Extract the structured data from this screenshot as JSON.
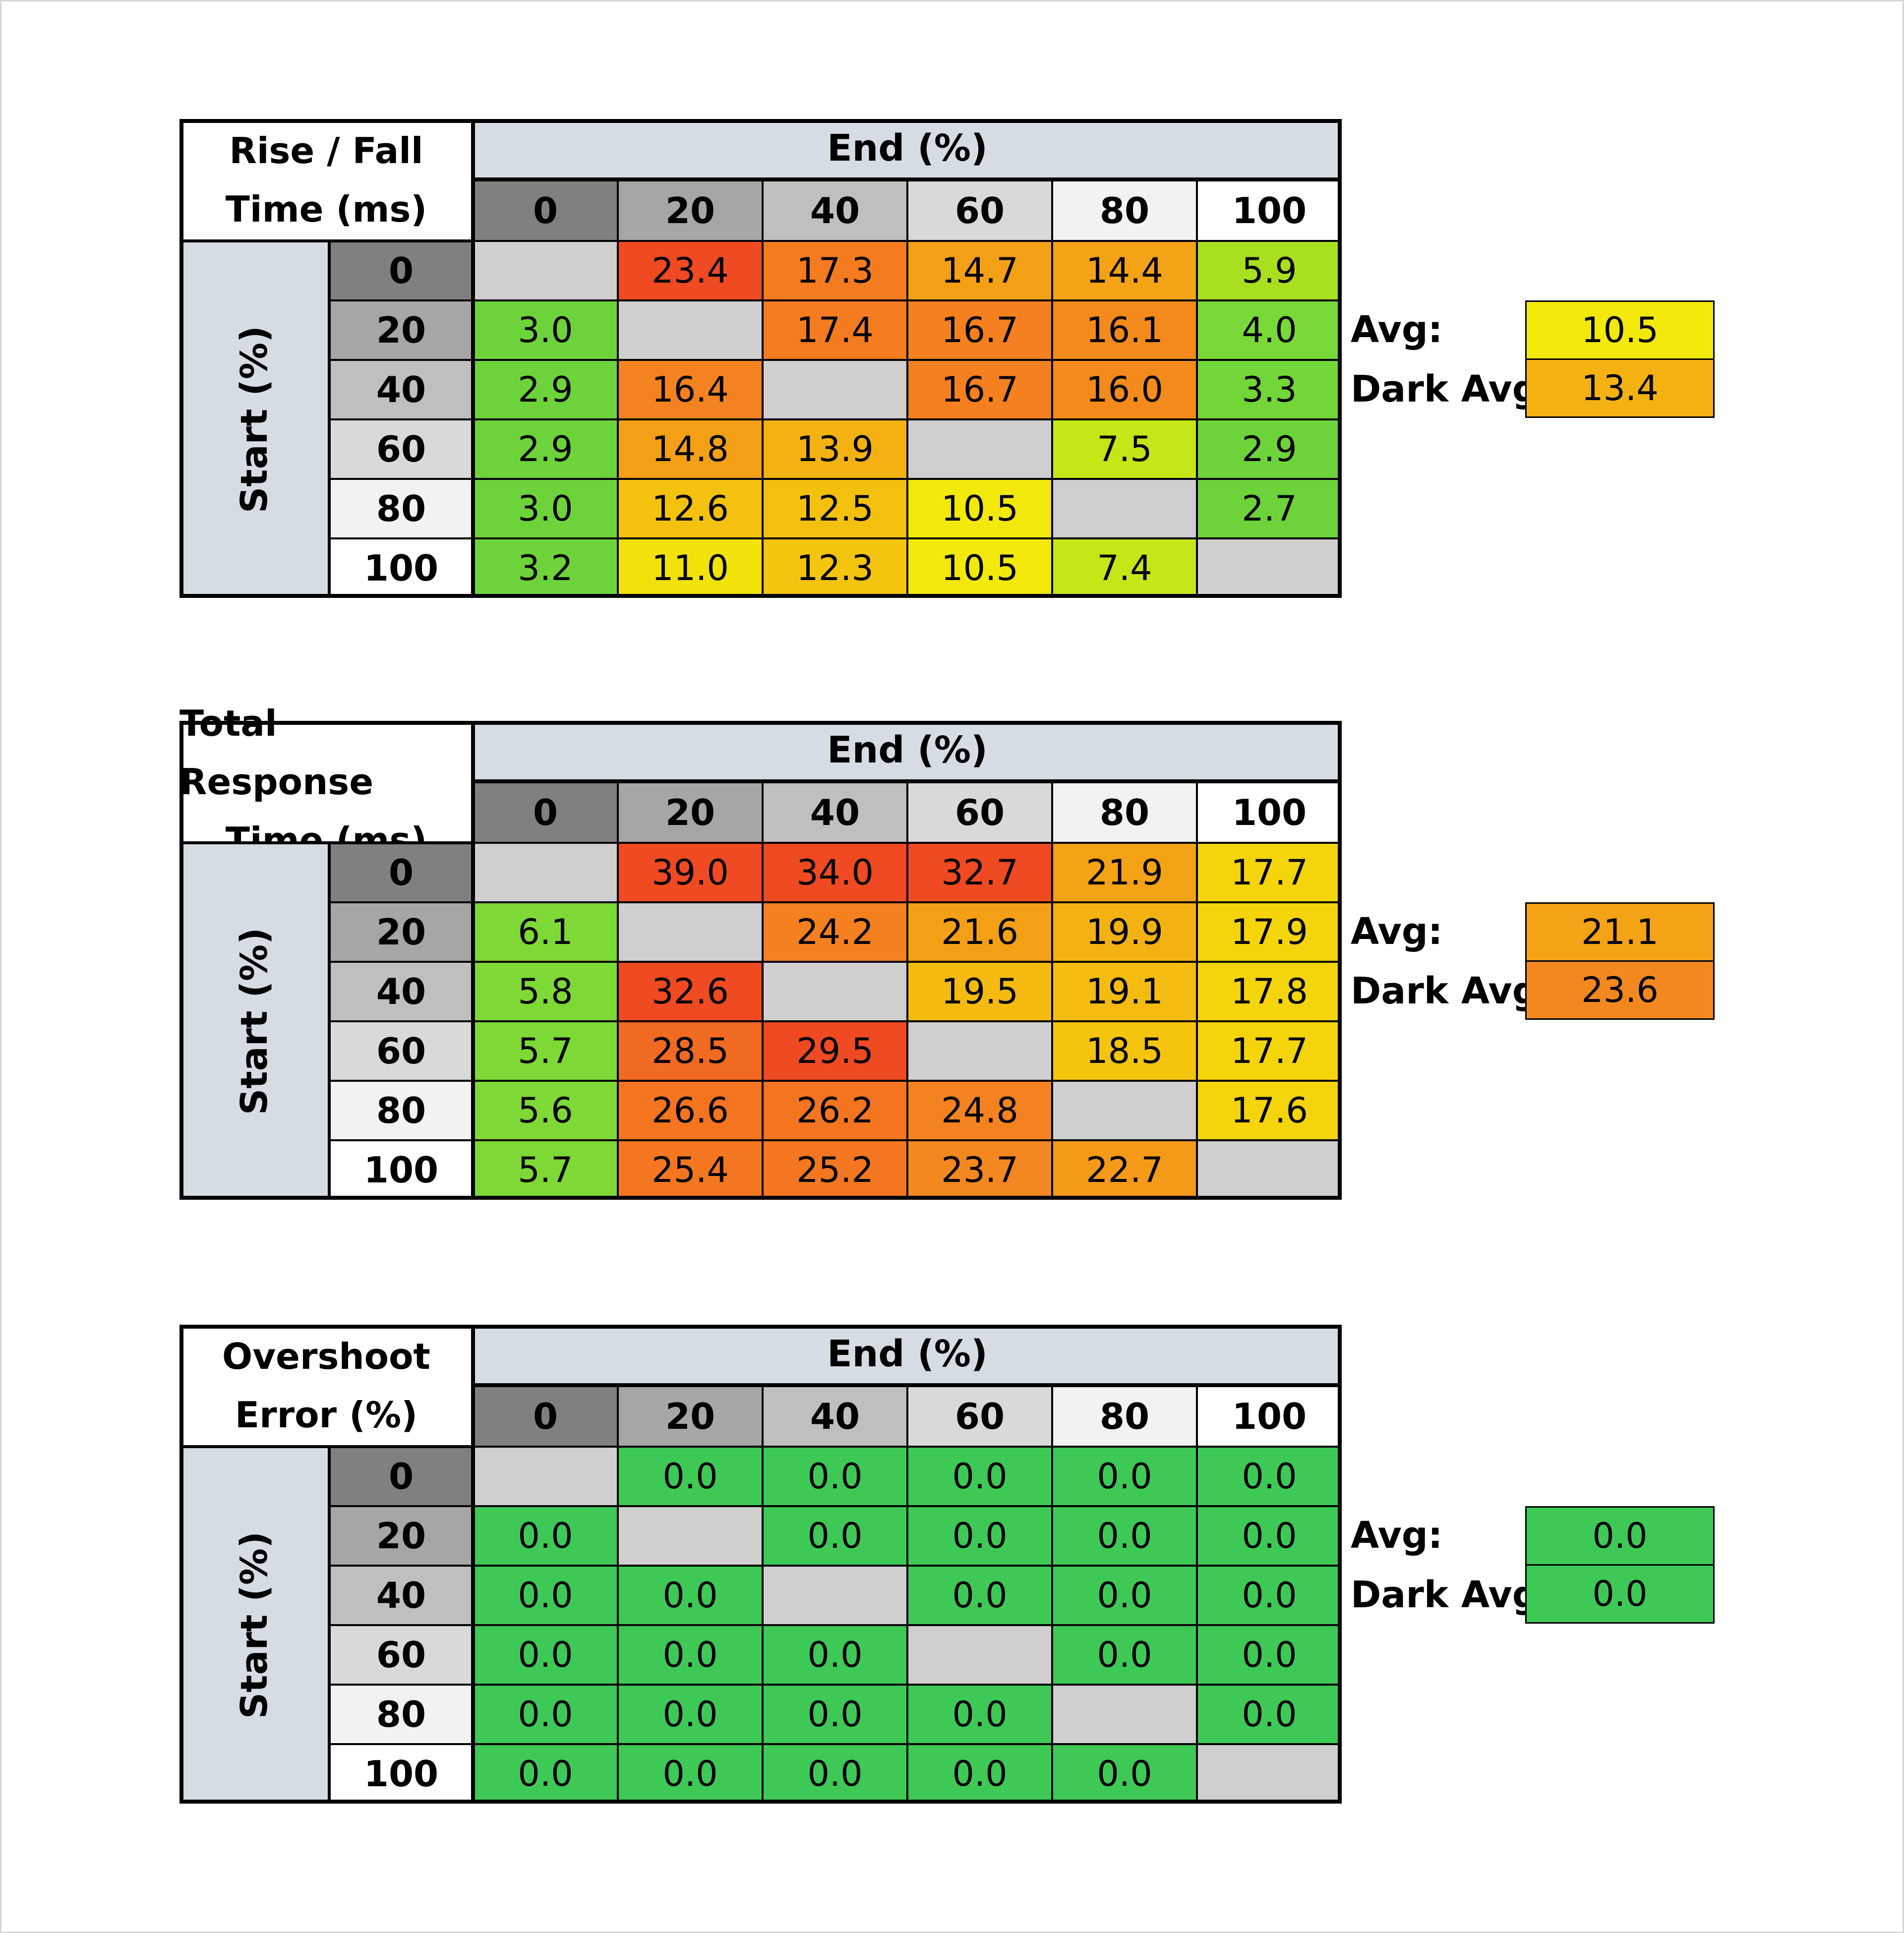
{
  "chart_data": [
    {
      "type": "heatmap",
      "title_lines": [
        "Rise / Fall",
        "Time (ms)"
      ],
      "col_header": "End (%)",
      "row_header": "Start (%)",
      "columns": [
        "0",
        "20",
        "40",
        "60",
        "80",
        "100"
      ],
      "rows": [
        "0",
        "20",
        "40",
        "60",
        "80",
        "100"
      ],
      "values": [
        [
          null,
          "23.4",
          "17.3",
          "14.7",
          "14.4",
          "5.9"
        ],
        [
          "3.0",
          null,
          "17.4",
          "16.7",
          "16.1",
          "4.0"
        ],
        [
          "2.9",
          "16.4",
          null,
          "16.7",
          "16.0",
          "3.3"
        ],
        [
          "2.9",
          "14.8",
          "13.9",
          null,
          "7.5",
          "2.9"
        ],
        [
          "3.0",
          "12.6",
          "12.5",
          "10.5",
          null,
          "2.7"
        ],
        [
          "3.2",
          "11.0",
          "12.3",
          "10.5",
          "7.4",
          null
        ]
      ],
      "colors": [
        [
          "#d0cece",
          "#f04a22",
          "#f47b20",
          "#f4a016",
          "#f4a216",
          "#a8e020"
        ],
        [
          "#6cd43a",
          "#d0cece",
          "#f47b20",
          "#f48020",
          "#f48a1c",
          "#78d838"
        ],
        [
          "#6cd43a",
          "#f48220",
          "#d0cece",
          "#f48020",
          "#f48a1c",
          "#72d638"
        ],
        [
          "#6cd43a",
          "#f4a016",
          "#f4b212",
          "#d0cece",
          "#c6e618",
          "#6cd43a"
        ],
        [
          "#6cd43a",
          "#f4c20e",
          "#f4c00e",
          "#f2e80a",
          "#d0cece",
          "#6cd43a"
        ],
        [
          "#6cd43a",
          "#f2e20a",
          "#f4c40e",
          "#f2e80a",
          "#c6e618",
          "#d0cece"
        ]
      ],
      "avg_label": "Avg:",
      "avg_value": "10.5",
      "avg_color": "#f2e80a",
      "dark_avg_label": "Dark Avg:",
      "dark_avg_value": "13.4",
      "dark_avg_color": "#f4b212"
    },
    {
      "type": "heatmap",
      "title_lines": [
        "Total Response",
        "Time (ms)"
      ],
      "col_header": "End (%)",
      "row_header": "Start (%)",
      "columns": [
        "0",
        "20",
        "40",
        "60",
        "80",
        "100"
      ],
      "rows": [
        "0",
        "20",
        "40",
        "60",
        "80",
        "100"
      ],
      "values": [
        [
          null,
          "39.0",
          "34.0",
          "32.7",
          "21.9",
          "17.7"
        ],
        [
          "6.1",
          null,
          "24.2",
          "21.6",
          "19.9",
          "17.9"
        ],
        [
          "5.8",
          "32.6",
          null,
          "19.5",
          "19.1",
          "17.8"
        ],
        [
          "5.7",
          "28.5",
          "29.5",
          null,
          "18.5",
          "17.7"
        ],
        [
          "5.6",
          "26.6",
          "26.2",
          "24.8",
          null,
          "17.6"
        ],
        [
          "5.7",
          "25.4",
          "25.2",
          "23.7",
          "22.7",
          null
        ]
      ],
      "colors": [
        [
          "#d0cece",
          "#f04a22",
          "#f04a22",
          "#f04a22",
          "#f4a216",
          "#f4d40a"
        ],
        [
          "#7ed836",
          "#d0cece",
          "#f48020",
          "#f4a016",
          "#f4b212",
          "#f4d40a"
        ],
        [
          "#7ed836",
          "#f04a22",
          "#d0cece",
          "#f4ba10",
          "#f4bc10",
          "#f4d40a"
        ],
        [
          "#7ed836",
          "#f06a22",
          "#f04a22",
          "#d0cece",
          "#f4c40e",
          "#f4d40a"
        ],
        [
          "#7ed836",
          "#f47420",
          "#f47420",
          "#f48220",
          "#d0cece",
          "#f4d40a"
        ],
        [
          "#7ed836",
          "#f47620",
          "#f47620",
          "#f48820",
          "#f49a18",
          "#d0cece"
        ]
      ],
      "avg_label": "Avg:",
      "avg_value": "21.1",
      "avg_color": "#f4a216",
      "dark_avg_label": "Dark Avg:",
      "dark_avg_value": "23.6",
      "dark_avg_color": "#f48820"
    },
    {
      "type": "heatmap",
      "title_lines": [
        "Overshoot",
        "Error (%)"
      ],
      "col_header": "End (%)",
      "row_header": "Start (%)",
      "columns": [
        "0",
        "20",
        "40",
        "60",
        "80",
        "100"
      ],
      "rows": [
        "0",
        "20",
        "40",
        "60",
        "80",
        "100"
      ],
      "values": [
        [
          null,
          "0.0",
          "0.0",
          "0.0",
          "0.0",
          "0.0"
        ],
        [
          "0.0",
          null,
          "0.0",
          "0.0",
          "0.0",
          "0.0"
        ],
        [
          "0.0",
          "0.0",
          null,
          "0.0",
          "0.0",
          "0.0"
        ],
        [
          "0.0",
          "0.0",
          "0.0",
          null,
          "0.0",
          "0.0"
        ],
        [
          "0.0",
          "0.0",
          "0.0",
          "0.0",
          null,
          "0.0"
        ],
        [
          "0.0",
          "0.0",
          "0.0",
          "0.0",
          "0.0",
          null
        ]
      ],
      "colors": [
        [
          "#d0cece",
          "#3ec957",
          "#3ec957",
          "#3ec957",
          "#3ec957",
          "#3ec957"
        ],
        [
          "#3ec957",
          "#d0cece",
          "#3ec957",
          "#3ec957",
          "#3ec957",
          "#3ec957"
        ],
        [
          "#3ec957",
          "#3ec957",
          "#d0cece",
          "#3ec957",
          "#3ec957",
          "#3ec957"
        ],
        [
          "#3ec957",
          "#3ec957",
          "#3ec957",
          "#d0cece",
          "#3ec957",
          "#3ec957"
        ],
        [
          "#3ec957",
          "#3ec957",
          "#3ec957",
          "#3ec957",
          "#d0cece",
          "#3ec957"
        ],
        [
          "#3ec957",
          "#3ec957",
          "#3ec957",
          "#3ec957",
          "#3ec957",
          "#d0cece"
        ]
      ],
      "avg_label": "Avg:",
      "avg_value": "0.0",
      "avg_color": "#3ec957",
      "dark_avg_label": "Dark Avg:",
      "dark_avg_value": "0.0",
      "dark_avg_color": "#3ec957"
    }
  ],
  "header_shades": [
    "#808080",
    "#a6a6a6",
    "#bfbfbf",
    "#d9d9d9",
    "#f2f2f2",
    "#ffffff"
  ]
}
